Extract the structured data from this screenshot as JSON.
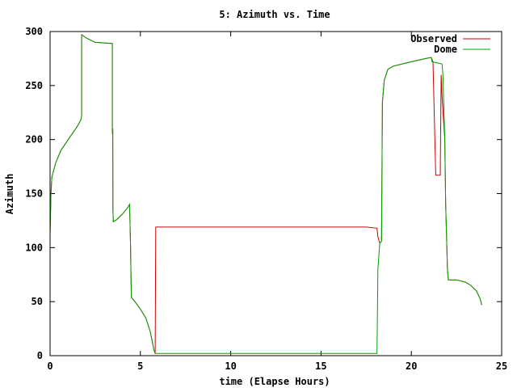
{
  "chart_data": {
    "type": "line",
    "title": "5: Azimuth vs. Time",
    "xlabel": "time (Elapse Hours)",
    "ylabel": "Azimuth",
    "xlim": [
      0,
      25
    ],
    "ylim": [
      0,
      300
    ],
    "x_ticks": [
      0,
      5,
      10,
      15,
      20,
      25
    ],
    "y_ticks": [
      0,
      50,
      100,
      150,
      200,
      250,
      300
    ],
    "grid": false,
    "legend_position": "top-right",
    "series": [
      {
        "name": "Observed",
        "color": "#cc0000",
        "points": [
          [
            0.0,
            113
          ],
          [
            0.05,
            150
          ],
          [
            0.1,
            165
          ],
          [
            0.3,
            178
          ],
          [
            0.6,
            190
          ],
          [
            1.0,
            200
          ],
          [
            1.5,
            212
          ],
          [
            1.7,
            218
          ],
          [
            1.75,
            222
          ],
          [
            1.75,
            297
          ],
          [
            2.0,
            294
          ],
          [
            2.5,
            290
          ],
          [
            3.4,
            289
          ],
          [
            3.45,
            289
          ],
          [
            3.45,
            205
          ],
          [
            3.47,
            210
          ],
          [
            3.48,
            135
          ],
          [
            3.5,
            124
          ],
          [
            3.7,
            126
          ],
          [
            4.0,
            131
          ],
          [
            4.3,
            137
          ],
          [
            4.4,
            140
          ],
          [
            4.45,
            105
          ],
          [
            4.5,
            54
          ],
          [
            4.7,
            50
          ],
          [
            5.0,
            43
          ],
          [
            5.3,
            35
          ],
          [
            5.55,
            22
          ],
          [
            5.75,
            5
          ],
          [
            5.82,
            2
          ],
          [
            5.85,
            119
          ],
          [
            17.5,
            119
          ],
          [
            18.1,
            118
          ],
          [
            18.15,
            110
          ],
          [
            18.25,
            104
          ],
          [
            18.35,
            106
          ],
          [
            18.4,
            235
          ],
          [
            18.5,
            255
          ],
          [
            18.7,
            265
          ],
          [
            19.0,
            268
          ],
          [
            20.0,
            272
          ],
          [
            20.8,
            275
          ],
          [
            21.1,
            276
          ],
          [
            21.2,
            272
          ],
          [
            21.35,
            167
          ],
          [
            21.6,
            167
          ],
          [
            21.65,
            260
          ],
          [
            21.7,
            240
          ],
          [
            21.85,
            200
          ],
          [
            21.9,
            140
          ],
          [
            21.95,
            110
          ],
          [
            22.0,
            80
          ],
          [
            22.05,
            70
          ],
          [
            22.5,
            70
          ],
          [
            22.8,
            69
          ],
          [
            23.0,
            68
          ],
          [
            23.3,
            65
          ],
          [
            23.6,
            60
          ],
          [
            23.8,
            53
          ],
          [
            23.9,
            47
          ]
        ]
      },
      {
        "name": "Dome",
        "color": "#00a000",
        "points": [
          [
            0.0,
            113
          ],
          [
            0.05,
            150
          ],
          [
            0.1,
            165
          ],
          [
            0.3,
            178
          ],
          [
            0.6,
            190
          ],
          [
            1.0,
            200
          ],
          [
            1.5,
            212
          ],
          [
            1.7,
            218
          ],
          [
            1.75,
            222
          ],
          [
            1.75,
            297
          ],
          [
            2.0,
            294
          ],
          [
            2.5,
            290
          ],
          [
            3.4,
            289
          ],
          [
            3.45,
            289
          ],
          [
            3.45,
            205
          ],
          [
            3.47,
            210
          ],
          [
            3.48,
            135
          ],
          [
            3.5,
            124
          ],
          [
            3.7,
            126
          ],
          [
            4.0,
            131
          ],
          [
            4.3,
            137
          ],
          [
            4.4,
            140
          ],
          [
            4.45,
            105
          ],
          [
            4.5,
            54
          ],
          [
            4.7,
            50
          ],
          [
            5.0,
            43
          ],
          [
            5.3,
            35
          ],
          [
            5.55,
            22
          ],
          [
            5.75,
            5
          ],
          [
            5.82,
            2
          ],
          [
            18.1,
            2
          ],
          [
            18.15,
            80
          ],
          [
            18.25,
            104
          ],
          [
            18.35,
            106
          ],
          [
            18.4,
            235
          ],
          [
            18.5,
            255
          ],
          [
            18.7,
            265
          ],
          [
            19.0,
            268
          ],
          [
            20.0,
            272
          ],
          [
            20.8,
            275
          ],
          [
            21.1,
            276
          ],
          [
            21.15,
            272
          ],
          [
            21.7,
            270
          ],
          [
            21.75,
            260
          ],
          [
            21.85,
            200
          ],
          [
            21.9,
            140
          ],
          [
            21.95,
            110
          ],
          [
            22.0,
            80
          ],
          [
            22.05,
            70
          ],
          [
            22.5,
            70
          ],
          [
            22.8,
            69
          ],
          [
            23.0,
            68
          ],
          [
            23.3,
            65
          ],
          [
            23.6,
            60
          ],
          [
            23.8,
            53
          ],
          [
            23.9,
            47
          ]
        ]
      }
    ]
  }
}
